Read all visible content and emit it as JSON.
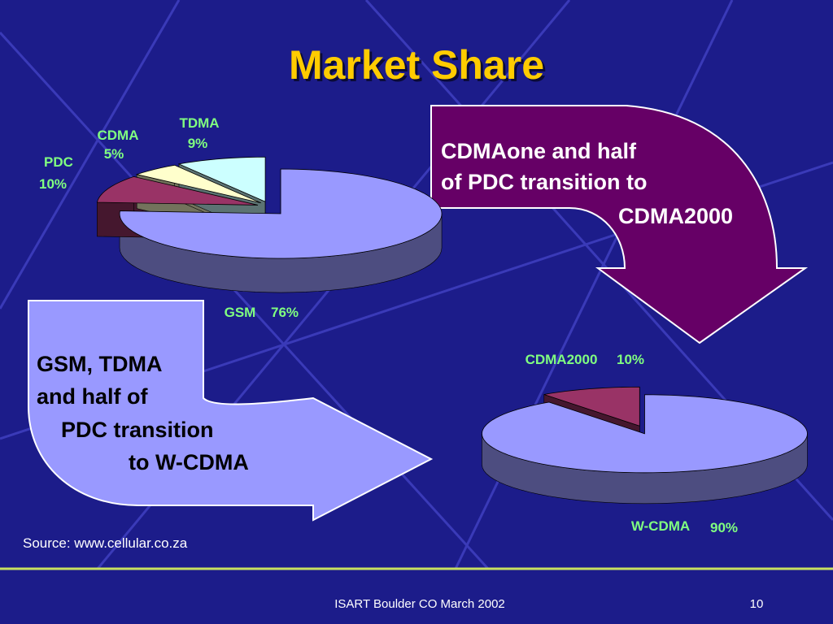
{
  "title": "Market Share",
  "chart_data": [
    {
      "type": "pie",
      "categories": [
        "GSM",
        "PDC",
        "CDMA",
        "TDMA"
      ],
      "values": [
        76,
        10,
        5,
        9
      ],
      "value_labels": [
        "76%",
        "10%",
        "5%",
        "9%"
      ],
      "colors": [
        "#9999ff",
        "#993366",
        "#ffffcc",
        "#ccffff"
      ]
    },
    {
      "type": "pie",
      "categories": [
        "W-CDMA",
        "CDMA2000"
      ],
      "values": [
        90,
        10
      ],
      "value_labels": [
        "90%",
        "10%"
      ],
      "colors": [
        "#9999ff",
        "#993366"
      ]
    }
  ],
  "annotations": [
    {
      "lines": [
        "CDMAone and half",
        "of PDC transition to",
        "CDMA2000"
      ]
    },
    {
      "lines": [
        "GSM, TDMA",
        "and half of",
        "PDC transition",
        "to W-CDMA"
      ]
    }
  ],
  "source": "Source: www.cellular.co.za",
  "footer": "ISART Boulder CO March 2002",
  "page_number": "10"
}
